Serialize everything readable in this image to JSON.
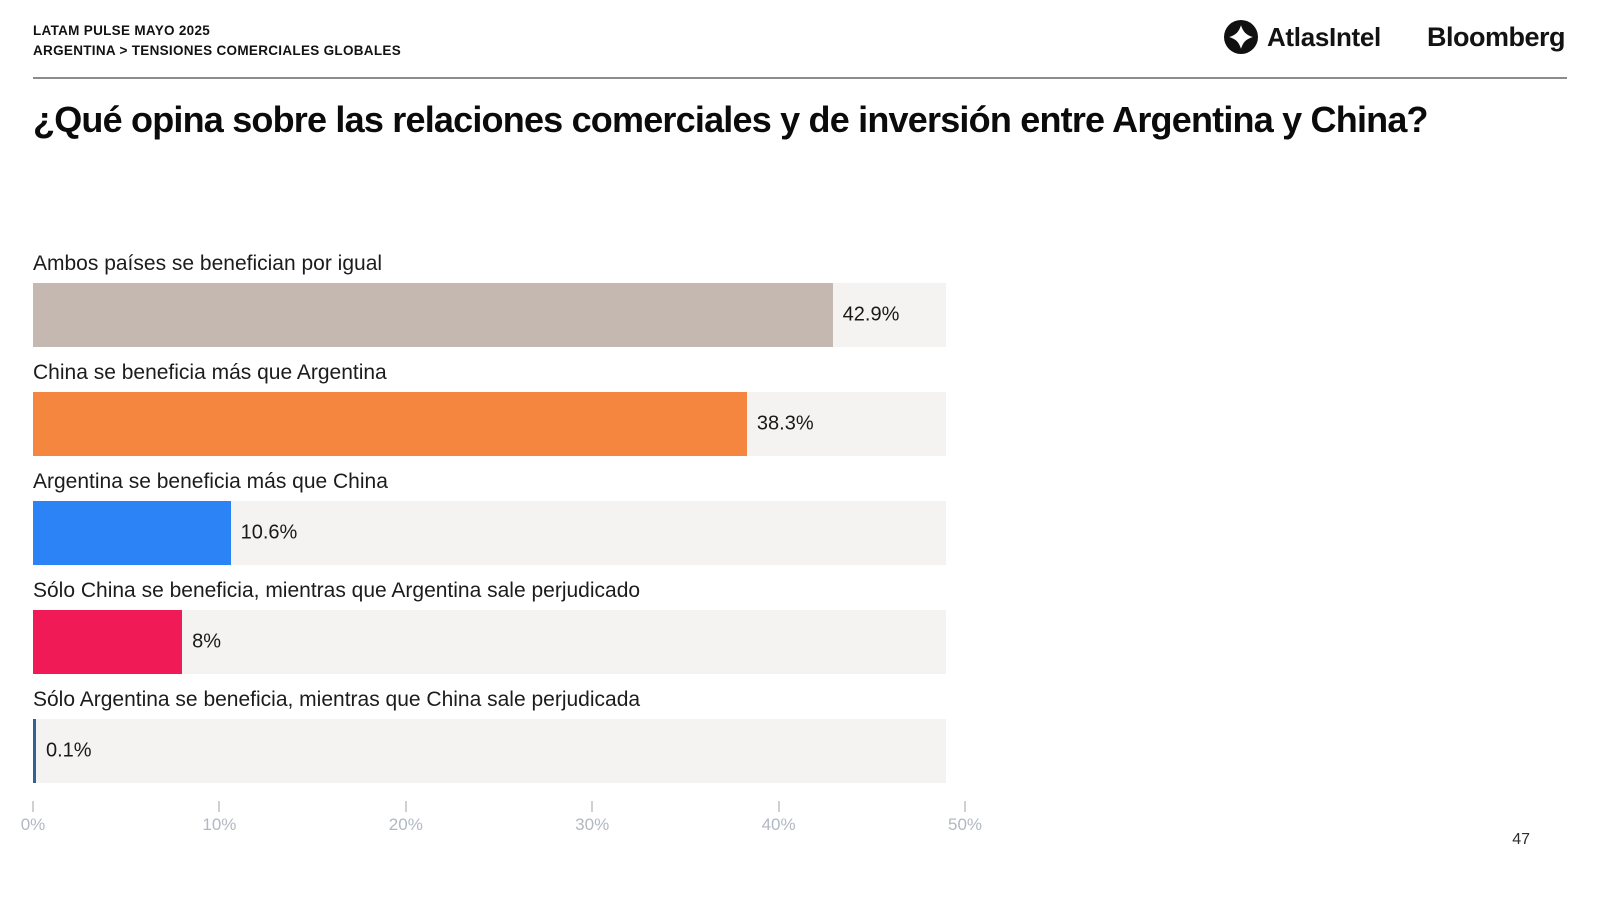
{
  "header": {
    "kicker_line1": "LATAM PULSE MAYO 2025",
    "kicker_line2": "ARGENTINA > TENSIONES COMERCIALES GLOBALES",
    "logos": {
      "atlasintel": "AtlasIntel",
      "bloomberg": "Bloomberg"
    }
  },
  "title": "¿Qué opina sobre las relaciones comerciales y de inversión entre Argentina y China?",
  "chart_data": {
    "type": "bar",
    "orientation": "horizontal",
    "categories": [
      "Ambos países se benefician por igual",
      "China se beneficia más que Argentina",
      "Argentina se beneficia más que China",
      "Sólo China se beneficia, mientras que Argentina sale perjudicado",
      "Sólo Argentina se beneficia, mientras que China sale perjudicada"
    ],
    "values": [
      42.9,
      38.3,
      10.6,
      8,
      0.1
    ],
    "value_labels": [
      "42.9%",
      "38.3%",
      "10.6%",
      "8%",
      "0.1%"
    ],
    "bar_colors": [
      "#c4b8b1",
      "#f5863f",
      "#2b83f6",
      "#f01a56",
      "#2f6395"
    ],
    "track_color": "#f4f3f1",
    "xlabel": "",
    "ylabel": "",
    "xlim": [
      0,
      50
    ],
    "x_ticks": [
      "0%",
      "10%",
      "20%",
      "30%",
      "40%",
      "50%"
    ],
    "grid": false,
    "legend": false
  },
  "page_number": "47"
}
